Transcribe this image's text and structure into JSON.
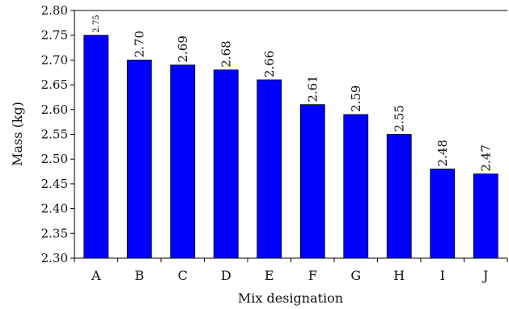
{
  "chart_data": {
    "type": "bar",
    "title": "",
    "xlabel": "Mix designation",
    "ylabel": "Mass (kg)",
    "categories": [
      "A",
      "B",
      "C",
      "D",
      "E",
      "F",
      "G",
      "H",
      "I",
      "J"
    ],
    "values": [
      2.75,
      2.7,
      2.69,
      2.68,
      2.66,
      2.61,
      2.59,
      2.55,
      2.48,
      2.47
    ],
    "data_labels": [
      "2.75",
      "2.70",
      "2.69",
      "2.68",
      "2.66",
      "2.61",
      "2.59",
      "2.55",
      "2.48",
      "2.47"
    ],
    "ylim": [
      2.3,
      2.8
    ],
    "yticks": [
      2.3,
      2.35,
      2.4,
      2.45,
      2.5,
      2.55,
      2.6,
      2.65,
      2.7,
      2.75,
      2.8
    ],
    "ytick_labels": [
      "2.30",
      "2.35",
      "2.40",
      "2.45",
      "2.50",
      "2.55",
      "2.60",
      "2.65",
      "2.70",
      "2.75",
      "2.80"
    ],
    "bar_color": "#0000ff",
    "grid": false,
    "legend": "none"
  }
}
